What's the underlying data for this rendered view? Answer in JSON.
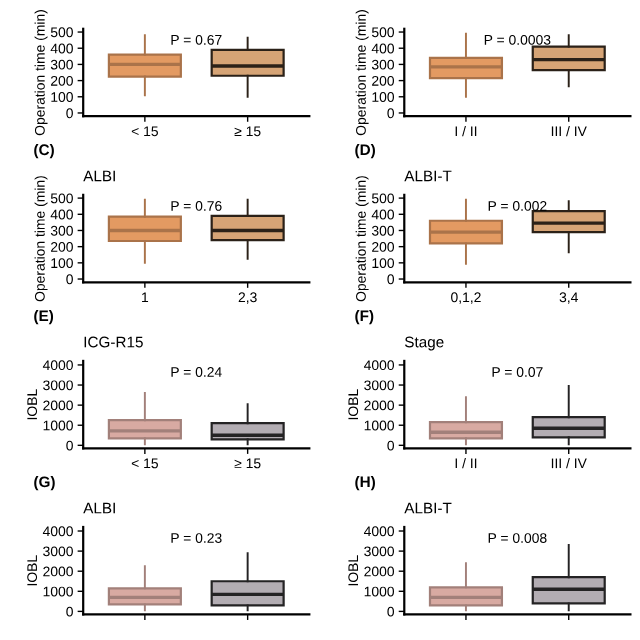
{
  "chart_data": [
    {
      "type": "box",
      "ylabel": "Operation time (min)",
      "categories": [
        "< 15",
        "≥ 15"
      ],
      "colors": [
        "#e39a62",
        "#d6a476"
      ],
      "ylim": [
        -20,
        520
      ],
      "yticks": [
        0,
        100,
        200,
        300,
        400,
        500
      ],
      "annotations": [
        "P = 0.67"
      ],
      "grid": false,
      "legend": false,
      "boxes": [
        {
          "low": 110,
          "q1": 225,
          "median": 300,
          "q3": 360,
          "high": 480
        },
        {
          "low": 100,
          "q1": 230,
          "median": 290,
          "q3": 390,
          "high": 465
        }
      ]
    },
    {
      "type": "box",
      "ylabel": "Operation time (min)",
      "categories": [
        "I / II",
        "III / IV"
      ],
      "colors": [
        "#e39a62",
        "#d6a476"
      ],
      "ylim": [
        -20,
        520
      ],
      "yticks": [
        0,
        100,
        200,
        300,
        400,
        500
      ],
      "annotations": [
        "P = 0.0003"
      ],
      "grid": false,
      "legend": false,
      "boxes": [
        {
          "low": 100,
          "q1": 215,
          "median": 285,
          "q3": 340,
          "high": 490
        },
        {
          "low": 165,
          "q1": 265,
          "median": 330,
          "q3": 410,
          "high": 480
        }
      ]
    },
    {
      "type": "box",
      "title": "(C)",
      "subtitle": "ALBI",
      "ylabel": "Operation time (min)",
      "categories": [
        "1",
        "2,3"
      ],
      "colors": [
        "#e39a62",
        "#d6a476"
      ],
      "ylim": [
        -20,
        520
      ],
      "yticks": [
        0,
        100,
        200,
        300,
        400,
        500
      ],
      "annotations": [
        "P = 0.76"
      ],
      "grid": false,
      "legend": false,
      "boxes": [
        {
          "low": 100,
          "q1": 235,
          "median": 300,
          "q3": 385,
          "high": 490
        },
        {
          "low": 125,
          "q1": 240,
          "median": 300,
          "q3": 390,
          "high": 490
        }
      ]
    },
    {
      "type": "box",
      "title": "(D)",
      "subtitle": "ALBI-T",
      "ylabel": "Operation time (min)",
      "categories": [
        "0,1,2",
        "3,4"
      ],
      "colors": [
        "#e39a62",
        "#d6a476"
      ],
      "ylim": [
        -20,
        520
      ],
      "yticks": [
        0,
        100,
        200,
        300,
        400,
        500
      ],
      "annotations": [
        "P = 0.002"
      ],
      "grid": false,
      "legend": false,
      "boxes": [
        {
          "low": 95,
          "q1": 220,
          "median": 290,
          "q3": 360,
          "high": 490
        },
        {
          "low": 165,
          "q1": 290,
          "median": 345,
          "q3": 420,
          "high": 480
        }
      ]
    },
    {
      "type": "box",
      "title": "(E)",
      "subtitle": "ICG-R15",
      "ylabel": "IOBL",
      "categories": [
        "< 15",
        "≥ 15"
      ],
      "colors": [
        "#d8aaa2",
        "#b3adb3"
      ],
      "ylim": [
        -150,
        4200
      ],
      "yticks": [
        0,
        1000,
        2000,
        3000,
        4000
      ],
      "annotations": [
        "P = 0.24"
      ],
      "grid": false,
      "legend": false,
      "boxes": [
        {
          "low": 50,
          "q1": 350,
          "median": 720,
          "q3": 1250,
          "high": 2600
        },
        {
          "low": 50,
          "q1": 300,
          "median": 500,
          "q3": 1100,
          "high": 2050
        }
      ]
    },
    {
      "type": "box",
      "title": "(F)",
      "subtitle": "Stage",
      "ylabel": "IOBL",
      "categories": [
        "I / II",
        "III / IV"
      ],
      "colors": [
        "#d8aaa2",
        "#b3adb3"
      ],
      "ylim": [
        -150,
        4200
      ],
      "yticks": [
        0,
        1000,
        2000,
        3000,
        4000
      ],
      "annotations": [
        "P = 0.07"
      ],
      "grid": false,
      "legend": false,
      "boxes": [
        {
          "low": 50,
          "q1": 350,
          "median": 650,
          "q3": 1150,
          "high": 2400
        },
        {
          "low": 50,
          "q1": 400,
          "median": 850,
          "q3": 1400,
          "high": 2950
        }
      ]
    },
    {
      "type": "box",
      "title": "(G)",
      "subtitle": "ALBI",
      "ylabel": "IOBL",
      "categories": [
        null,
        null
      ],
      "tick_labels": "y",
      "colors": [
        "#d8aaa2",
        "#b3adb3"
      ],
      "ylim": [
        -150,
        4200
      ],
      "yticks": [
        0,
        1000,
        2000,
        3000,
        4000
      ],
      "annotations": [
        "P = 0.23"
      ],
      "grid": false,
      "legend": false,
      "boxes": [
        {
          "low": 50,
          "q1": 350,
          "median": 700,
          "q3": 1150,
          "high": 2250
        },
        {
          "low": 50,
          "q1": 300,
          "median": 850,
          "q3": 1500,
          "high": 2900
        }
      ]
    },
    {
      "type": "box",
      "title": "(H)",
      "subtitle": "ALBI-T",
      "ylabel": "IOBL",
      "categories": [
        null,
        null
      ],
      "tick_labels": "y",
      "colors": [
        "#d8aaa2",
        "#b3adb3"
      ],
      "ylim": [
        -150,
        4200
      ],
      "yticks": [
        0,
        1000,
        2000,
        3000,
        4000
      ],
      "annotations": [
        "P = 0.008"
      ],
      "grid": false,
      "legend": false,
      "boxes": [
        {
          "low": 50,
          "q1": 300,
          "median": 700,
          "q3": 1200,
          "high": 2400
        },
        {
          "low": 50,
          "q1": 400,
          "median": 1100,
          "q3": 1700,
          "high": 3300
        }
      ]
    }
  ]
}
